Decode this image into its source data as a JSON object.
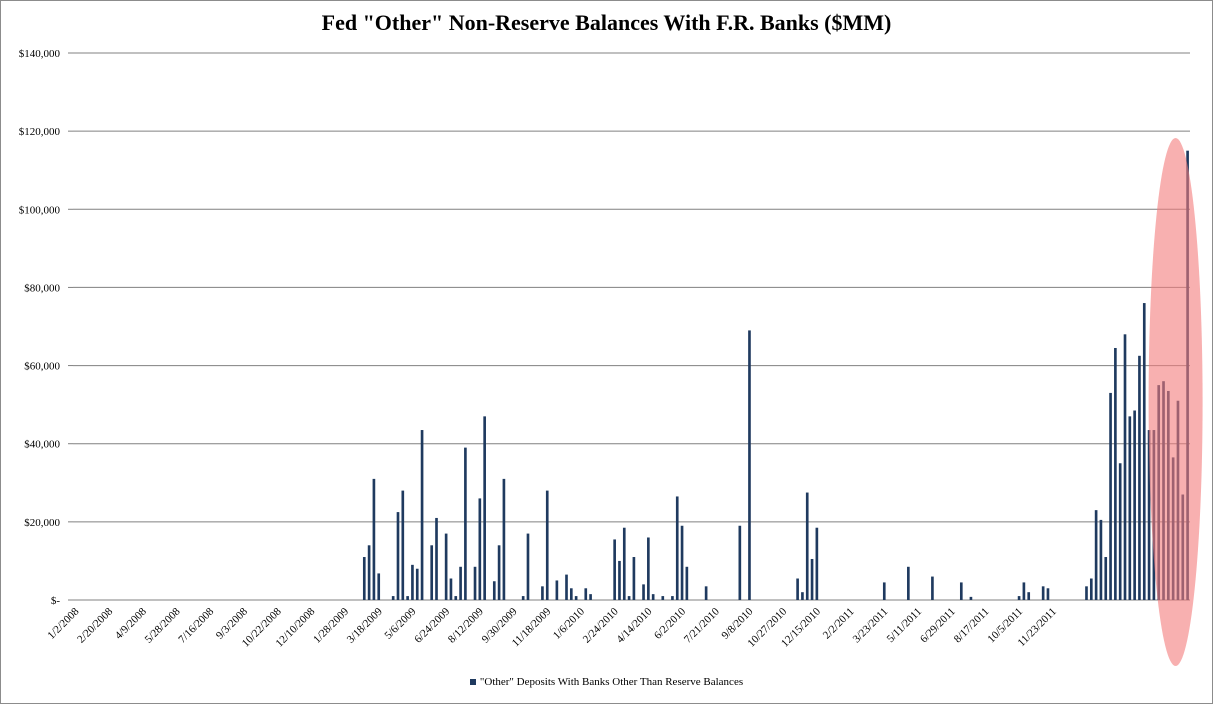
{
  "chart_data": {
    "type": "bar",
    "title": "Fed \"Other\" Non-Reserve Balances With F.R. Banks ($MM)",
    "xlabel": "",
    "ylabel": "",
    "ylim": [
      0,
      140000
    ],
    "yticks": [
      0,
      20000,
      40000,
      60000,
      80000,
      100000,
      120000,
      140000
    ],
    "ytick_labels": [
      "$-",
      "$20,000",
      "$40,000",
      "$60,000",
      "$80,000",
      "$100,000",
      "$120,000",
      "$140,000"
    ],
    "xtick_labels": [
      "1/2/2008",
      "2/20/2008",
      "4/9/2008",
      "5/28/2008",
      "7/16/2008",
      "9/3/2008",
      "10/22/2008",
      "12/10/2008",
      "1/28/2009",
      "3/18/2009",
      "5/6/2009",
      "6/24/2009",
      "8/12/2009",
      "9/30/2009",
      "11/18/2009",
      "1/6/2010",
      "2/24/2010",
      "4/14/2010",
      "6/2/2010",
      "7/21/2010",
      "9/8/2010",
      "10/27/2010",
      "12/15/2010",
      "2/2/2011",
      "3/23/2011",
      "5/11/2011",
      "6/29/2011",
      "8/17/2011",
      "10/5/2011",
      "11/23/2011"
    ],
    "grid": true,
    "legend_position": "bottom",
    "series": [
      {
        "name": "\"Other\" Deposits With Banks Other Than Reserve Balances",
        "color": "#1f3a5f",
        "values": [
          0,
          0,
          0,
          0,
          0,
          0,
          0,
          0,
          0,
          0,
          0,
          0,
          0,
          0,
          0,
          0,
          0,
          0,
          0,
          0,
          0,
          0,
          0,
          0,
          0,
          0,
          0,
          0,
          0,
          0,
          0,
          0,
          0,
          0,
          0,
          0,
          0,
          0,
          0,
          0,
          0,
          0,
          0,
          0,
          0,
          0,
          0,
          0,
          0,
          0,
          0,
          0,
          0,
          0,
          0,
          0,
          0,
          0,
          0,
          0,
          11000,
          14000,
          31000,
          6800,
          0,
          0,
          1000,
          22500,
          28000,
          1000,
          9000,
          8000,
          43500,
          0,
          14000,
          21000,
          0,
          17000,
          5500,
          1000,
          8500,
          39000,
          0,
          8500,
          26000,
          47000,
          0,
          4800,
          14000,
          31000,
          0,
          0,
          0,
          1000,
          17000,
          0,
          0,
          3500,
          28000,
          0,
          5000,
          0,
          6500,
          3000,
          1000,
          0,
          3000,
          1500,
          0,
          0,
          0,
          0,
          15500,
          10000,
          18500,
          1000,
          11000,
          0,
          4000,
          16000,
          1500,
          0,
          1000,
          0,
          1000,
          26500,
          19000,
          8500,
          0,
          0,
          0,
          3500,
          0,
          0,
          0,
          0,
          0,
          0,
          19000,
          0,
          69000,
          0,
          0,
          0,
          0,
          0,
          0,
          0,
          0,
          0,
          5500,
          2000,
          27500,
          10500,
          18500,
          0,
          0,
          0,
          0,
          0,
          0,
          0,
          0,
          0,
          0,
          0,
          0,
          0,
          4500,
          0,
          0,
          0,
          0,
          8500,
          0,
          0,
          0,
          0,
          6000,
          0,
          0,
          0,
          0,
          0,
          4500,
          0,
          800,
          0,
          0,
          0,
          0,
          0,
          0,
          0,
          0,
          0,
          1000,
          4500,
          2000,
          0,
          0,
          3500,
          3000,
          0,
          0,
          0,
          0,
          0,
          0,
          0,
          3500,
          5500,
          23000,
          20500,
          11000,
          53000,
          64500,
          35000,
          68000,
          47000,
          48500,
          62500,
          76000,
          43500,
          43500,
          55000,
          56000,
          53500,
          36500,
          51000,
          27000,
          115000
        ]
      }
    ]
  },
  "annotation": {
    "highlight_color": "#f47c7c"
  }
}
